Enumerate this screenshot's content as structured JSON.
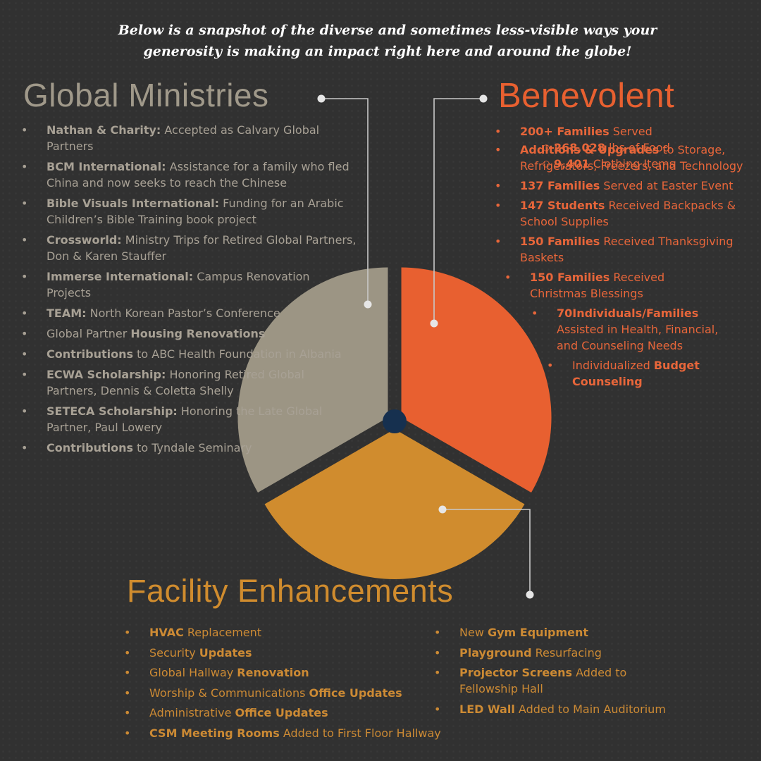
{
  "intro": {
    "line1": "Below is a snapshot of the diverse and sometimes less-visible ways your",
    "line2": "generosity is making an impact right here and around the globe!"
  },
  "global_ministries": {
    "title": "Global Ministries",
    "items": [
      {
        "bold": "Nathan & Charity:",
        "rest": " Accepted as Calvary Global Partners"
      },
      {
        "bold": "BCM International:",
        "rest": " Assistance for a family who fled China and now seeks to reach the Chinese"
      },
      {
        "bold": "Bible Visuals International:",
        "rest": " Funding for an Arabic Children’s Bible Training book project"
      },
      {
        "bold": "Crossworld:",
        "rest": " Ministry Trips for Retired Global Partners, Don & Karen Stauffer"
      },
      {
        "bold": "Immerse International:",
        "rest": " Campus Renovation Projects"
      },
      {
        "bold": "TEAM:",
        "rest": " North Korean Pastor’s Conference"
      },
      {
        "pre": "Global Partner ",
        "bold": "Housing Renovations",
        "rest": ""
      },
      {
        "bold": "Contributions",
        "rest": " to ABC Health Foundation in Albania"
      },
      {
        "bold": "ECWA Scholarship:",
        "rest": " Honoring Retired Global Partners, Dennis & Coletta Shelly"
      },
      {
        "bold": "SETECA Scholarship:",
        "rest": " Honoring the Late Global Partner, Paul Lowery"
      },
      {
        "bold": "Contributions",
        "rest": " to Tyndale Seminary"
      }
    ]
  },
  "benevolent": {
    "title": "Benevolent",
    "families": {
      "bold": "200+ Families",
      "rest": " Served"
    },
    "sub_items": [
      {
        "bold": "268,028",
        "rest": " lbs of Food"
      },
      {
        "bold": "9,401",
        "rest": " Clothing Items"
      }
    ],
    "items": [
      {
        "bold": "Additions & Upgrades",
        "rest": " to Storage, Refrigerators, Freezers, and Technology"
      },
      {
        "bold": "137 Families",
        "rest": " Served at Easter Event"
      },
      {
        "bold": "147 Students",
        "rest": " Received Backpacks & School Supplies"
      },
      {
        "bold": "150 Families",
        "rest": " Received Thanksgiving Baskets"
      },
      {
        "bold": "150 Families",
        "rest": " Received Christmas Blessings"
      },
      {
        "bold": "70Individuals/Families",
        "rest": " Assisted in Health, Financial, and Counseling Needs"
      },
      {
        "pre": "Individualized ",
        "bold": "Budget Counseling",
        "rest": ""
      }
    ]
  },
  "facility": {
    "title": "Facility Enhancements",
    "col1": [
      {
        "bold": "HVAC",
        "rest": " Replacement"
      },
      {
        "pre": "Security ",
        "bold": "Updates",
        "rest": ""
      },
      {
        "pre": "Global Hallway ",
        "bold": "Renovation",
        "rest": ""
      },
      {
        "pre": "Worship & Communications ",
        "bold": "Office Updates",
        "rest": ""
      },
      {
        "pre": "Administrative ",
        "bold": "Office Updates",
        "rest": ""
      },
      {
        "bold": "CSM Meeting Rooms",
        "rest": " Added to First Floor Hallway"
      }
    ],
    "col2": [
      {
        "pre": "New ",
        "bold": "Gym Equipment",
        "rest": ""
      },
      {
        "bold": "Playground",
        "rest": " Resurfacing"
      },
      {
        "bold": "Projector Screens",
        "rest": " Added to Fellowship Hall"
      },
      {
        "bold": "LED Wall",
        "rest": " Added to Main Auditorium"
      }
    ]
  },
  "colors": {
    "background": "#313131",
    "global_ministries": "#9c9584",
    "benevolent": "#e86030",
    "facility": "#d08c2e",
    "hub": "#16304f",
    "connector": "#c8c8c8"
  },
  "chart_data": {
    "type": "pie",
    "exploded": true,
    "center_hub": true,
    "slices": [
      {
        "label": "Benevolent",
        "value": 33.3,
        "color": "#e86030"
      },
      {
        "label": "Facility Enhancements",
        "value": 33.3,
        "color": "#d08c2e"
      },
      {
        "label": "Global Ministries",
        "value": 33.3,
        "color": "#9c9584"
      }
    ],
    "start_angle_deg": 0,
    "direction": "clockwise",
    "legend": "none"
  }
}
